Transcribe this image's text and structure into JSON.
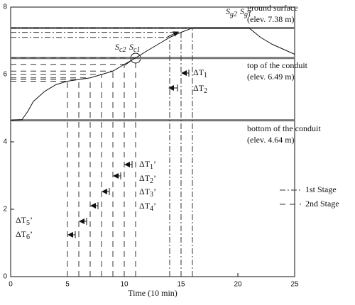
{
  "chart_data": {
    "type": "line",
    "x_label": "Time (10 min)",
    "xlim": [
      0,
      25
    ],
    "ylim": [
      0,
      8
    ],
    "xticks": [
      0,
      5,
      10,
      15,
      20,
      25
    ],
    "yticks": [
      0,
      2,
      4,
      6,
      8
    ],
    "x": [
      0,
      1,
      1.5,
      2,
      3,
      4,
      5,
      6,
      7,
      8,
      9,
      10,
      11,
      12,
      13,
      14,
      15,
      16,
      21,
      22,
      23,
      24,
      25
    ],
    "values": [
      4.64,
      4.66,
      4.9,
      5.2,
      5.5,
      5.7,
      5.8,
      5.85,
      5.9,
      6.0,
      6.1,
      6.3,
      6.49,
      6.7,
      6.9,
      7.1,
      7.25,
      7.38,
      7.38,
      7.1,
      6.9,
      6.75,
      6.6
    ],
    "color": "#111111",
    "reference_lines": [
      {
        "value": 7.38,
        "label": "ground surface",
        "sublabel": "(elev. 7.38 m)"
      },
      {
        "value": 6.49,
        "label": "top of the conduit",
        "sublabel": "(elev. 6.49 m)"
      },
      {
        "value": 4.64,
        "label": "bottom of the conduit",
        "sublabel": "(elev. 4.64 m)"
      }
    ],
    "stages": [
      {
        "name": "1st Stage",
        "dash": "8 3 2 3",
        "x": [
          14,
          15,
          16
        ]
      },
      {
        "name": "2nd Stage",
        "dash": "8 6",
        "x": [
          5,
          6,
          7,
          8,
          9,
          10,
          11
        ]
      }
    ],
    "annotations": [
      {
        "text": "S",
        "sub": "g2"
      },
      {
        "text": "S",
        "sub": "g1"
      },
      {
        "text": "S",
        "sub": "c2"
      },
      {
        "text": "S",
        "sub": "c1"
      },
      {
        "text": "ΔT",
        "sub": "1"
      },
      {
        "text": "ΔT",
        "sub": "2"
      },
      {
        "text": "ΔT",
        "sub": "1",
        "suffix": "’"
      },
      {
        "text": "ΔT",
        "sub": "2",
        "suffix": "’"
      },
      {
        "text": "ΔT",
        "sub": "3",
        "suffix": "’"
      },
      {
        "text": "ΔT",
        "sub": "4",
        "suffix": "’"
      },
      {
        "text": "ΔT",
        "sub": "5",
        "suffix": "’"
      },
      {
        "text": "ΔT",
        "sub": "6",
        "suffix": "’"
      }
    ]
  }
}
